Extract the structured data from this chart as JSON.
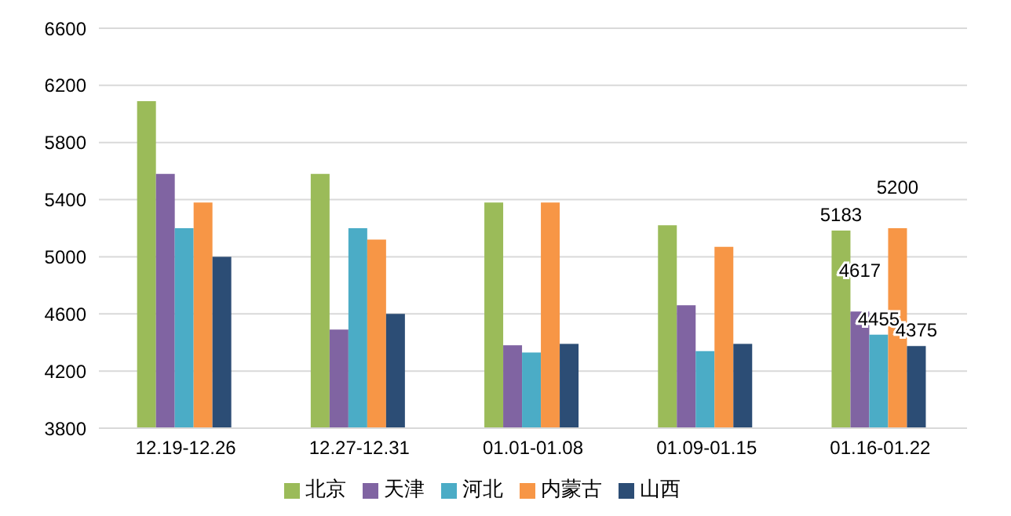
{
  "chart_data": {
    "type": "bar",
    "categories": [
      "12.19-12.26",
      "12.27-12.31",
      "01.01-01.08",
      "01.09-01.15",
      "01.16-01.22"
    ],
    "series": [
      {
        "name": "北京",
        "color": "#9bbb59",
        "values": [
          6090,
          5580,
          5380,
          5220,
          5183
        ],
        "value_labels": [
          null,
          null,
          null,
          null,
          "5183"
        ]
      },
      {
        "name": "天津",
        "color": "#8064a2",
        "values": [
          5580,
          4490,
          4380,
          4660,
          4617
        ],
        "value_labels": [
          null,
          null,
          null,
          null,
          "4617"
        ]
      },
      {
        "name": "河北",
        "color": "#4bacc6",
        "values": [
          5200,
          5200,
          4330,
          4340,
          4455
        ],
        "value_labels": [
          null,
          null,
          null,
          null,
          "4455"
        ]
      },
      {
        "name": "内蒙古",
        "color": "#f79646",
        "values": [
          5380,
          5120,
          5380,
          5070,
          5200
        ],
        "value_labels": [
          null,
          null,
          null,
          null,
          "5200"
        ]
      },
      {
        "name": "山西",
        "color": "#2c4d75",
        "values": [
          5000,
          4600,
          4390,
          4390,
          4375
        ],
        "value_labels": [
          null,
          null,
          null,
          null,
          "4375"
        ]
      }
    ],
    "ylim": [
      3800,
      6600
    ],
    "yticks": [
      3800,
      4200,
      4600,
      5000,
      5400,
      5800,
      6200,
      6600
    ],
    "grid": "y",
    "legend": "bottom"
  }
}
